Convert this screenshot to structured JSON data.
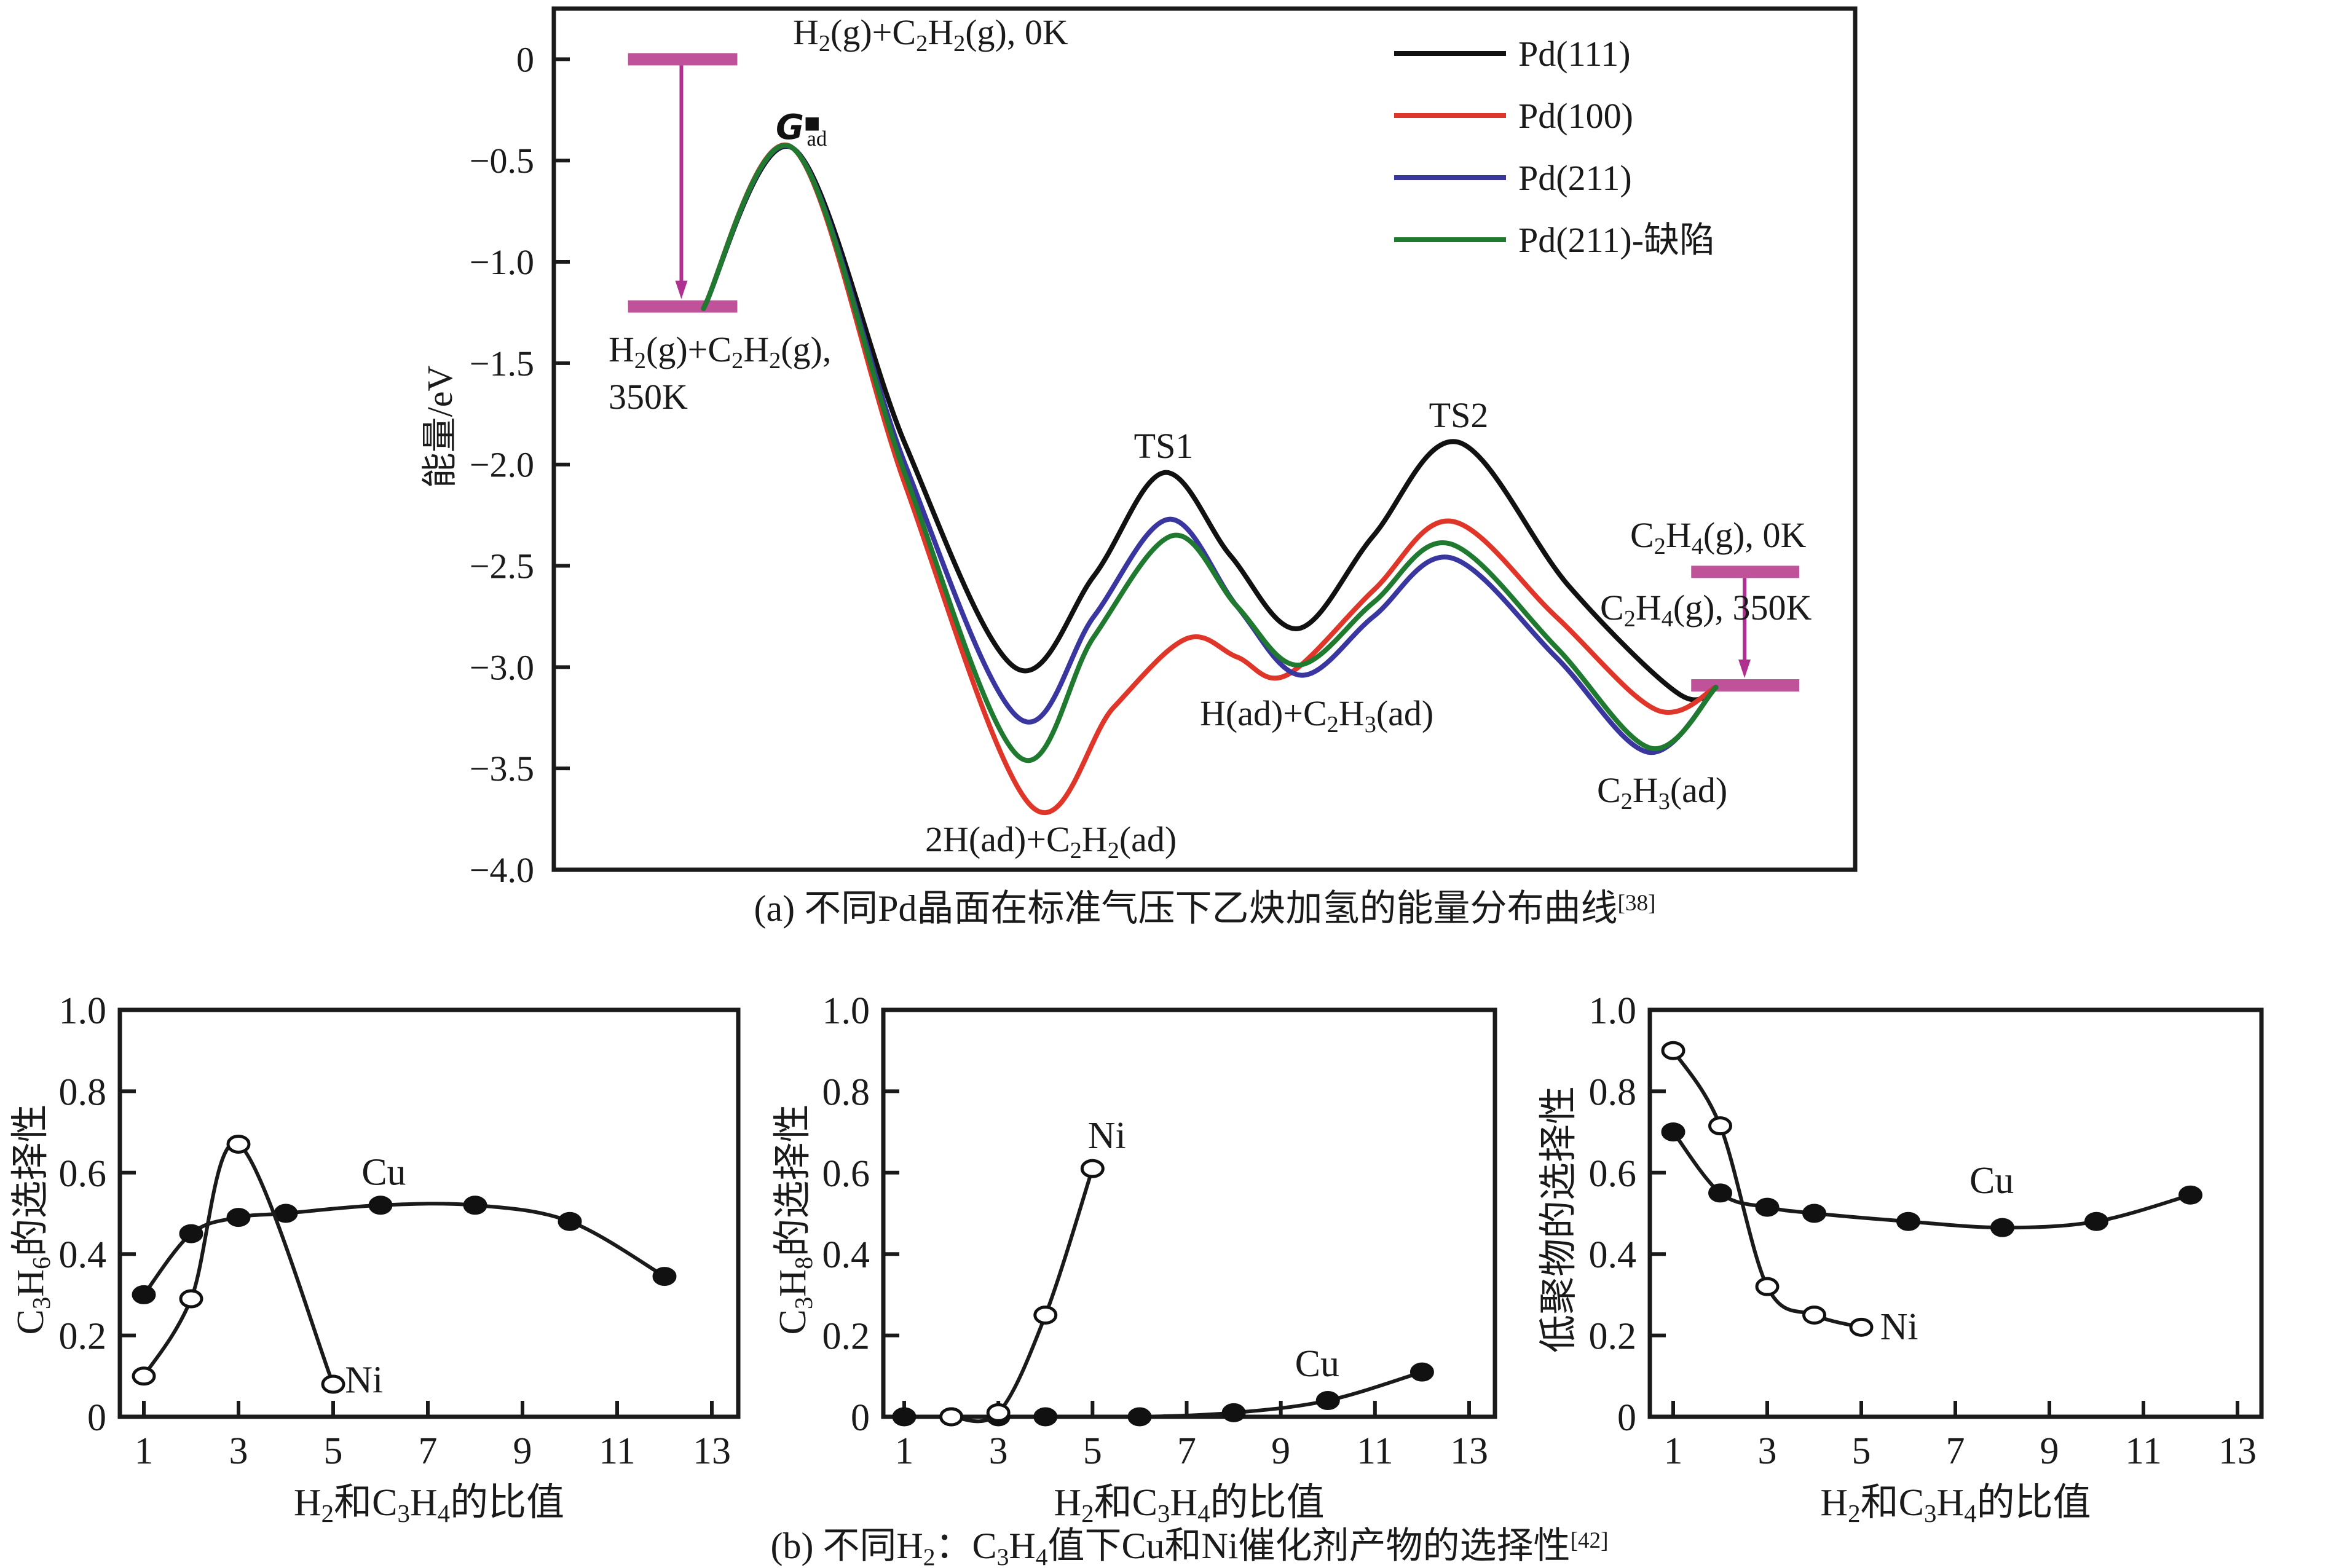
{
  "chart_data": [
    {
      "id": "a",
      "type": "line",
      "title": "",
      "caption": "(a) 不同Pd晶面在标准气压下乙炔加氢的能量分布曲线",
      "caption_ref": "[38]",
      "xlabel": "",
      "ylabel": "能量/eV",
      "xlim": [
        0,
        100
      ],
      "ylim": [
        -4.0,
        0.25
      ],
      "yticks": [
        0,
        -0.5,
        -1.0,
        -1.5,
        -2.0,
        -2.5,
        -3.0,
        -3.5,
        -4.0
      ],
      "ytick_labels": [
        "0",
        "−0.5",
        "−1.0",
        "−1.5",
        "−2.0",
        "−2.5",
        "−3.0",
        "−3.5",
        "−4.0"
      ],
      "grid": false,
      "legend_position": "top-right",
      "series": [
        {
          "name": "Pd(111)",
          "color": "#111111",
          "x": [
            11.5,
            18.4,
            27,
            35.4,
            41.5,
            46.9,
            52,
            57.2,
            63,
            69.5,
            78,
            86.4,
            89.3
          ],
          "y": [
            -1.23,
            -0.44,
            -1.9,
            -3.0,
            -2.55,
            -2.04,
            -2.45,
            -2.81,
            -2.35,
            -1.89,
            -2.6,
            -3.13,
            -3.1
          ]
        },
        {
          "name": "Pd(100)",
          "color": "#e0362a",
          "x": [
            11.5,
            18.4,
            27,
            36.6,
            43,
            48.6,
            52.5,
            56.3,
            63,
            69.0,
            77,
            84.7,
            89.3
          ],
          "y": [
            -1.23,
            -0.44,
            -2.1,
            -3.68,
            -3.2,
            -2.86,
            -2.95,
            -3.04,
            -2.62,
            -2.28,
            -2.75,
            -3.21,
            -3.1
          ]
        },
        {
          "name": "Pd(211)",
          "color": "#3a36a0",
          "x": [
            11.5,
            18.4,
            27,
            35.7,
            41.5,
            47.3,
            52.5,
            57.4,
            63,
            68.9,
            77,
            84.1,
            89.3
          ],
          "y": [
            -1.23,
            -0.44,
            -2.0,
            -3.25,
            -2.75,
            -2.27,
            -2.7,
            -3.04,
            -2.75,
            -2.46,
            -2.95,
            -3.42,
            -3.1
          ]
        },
        {
          "name": "Pd(211)-缺陷",
          "color": "#1f7a30",
          "x": [
            11.5,
            18.4,
            27,
            35.7,
            41.5,
            47.6,
            52.5,
            57.2,
            63,
            68.8,
            77,
            84.3,
            89.3
          ],
          "y": [
            -1.23,
            -0.44,
            -2.05,
            -3.44,
            -2.85,
            -2.35,
            -2.7,
            -2.99,
            -2.68,
            -2.39,
            -2.9,
            -3.4,
            -3.1
          ]
        }
      ],
      "energy_levels": [
        {
          "x_range": [
            5.7,
            14.1
          ],
          "y": 0.0
        },
        {
          "x_range": [
            5.7,
            14.1
          ],
          "y": -1.22
        },
        {
          "x_range": [
            87.4,
            95.7
          ],
          "y": -2.53
        },
        {
          "x_range": [
            87.4,
            95.7
          ],
          "y": -3.09
        }
      ],
      "arrows": [
        {
          "x": 9.8,
          "from": 0.0,
          "to": -1.22
        },
        {
          "x": 91.5,
          "from": -2.53,
          "to": -3.09
        }
      ],
      "annotations": {
        "h2_c2h2_0k": {
          "main": "H",
          "parts": [
            [
              "H",
              "n"
            ],
            [
              "2",
              "s"
            ],
            [
              "(g)+C",
              "n"
            ],
            [
              "2",
              "s"
            ],
            [
              "H",
              "n"
            ],
            [
              "2",
              "s"
            ],
            [
              "(g), 0K",
              "n"
            ]
          ]
        },
        "h2_c2h2_350k_line1": {
          "parts": [
            [
              "H",
              "n"
            ],
            [
              "2",
              "s"
            ],
            [
              "(g)+C",
              "n"
            ],
            [
              "2",
              "s"
            ],
            [
              "H",
              "n"
            ],
            [
              "2",
              "s"
            ],
            [
              "(g),",
              "n"
            ]
          ]
        },
        "h2_c2h2_350k_line2": "350K",
        "gad": {
          "main": "G",
          "sub": "ad",
          "sup": "■"
        },
        "ts1": "TS1",
        "ts2": "TS2",
        "state_2h_c2h2": {
          "parts": [
            [
              "2H(ad)+C",
              "n"
            ],
            [
              "2",
              "s"
            ],
            [
              "H",
              "n"
            ],
            [
              "2",
              "s"
            ],
            [
              "(ad)",
              "n"
            ]
          ]
        },
        "state_h_c2h3": {
          "parts": [
            [
              "H(ad)+C",
              "n"
            ],
            [
              "2",
              "s"
            ],
            [
              "H",
              "n"
            ],
            [
              "3",
              "s"
            ],
            [
              "(ad)",
              "n"
            ]
          ]
        },
        "state_c2h3": {
          "parts": [
            [
              "C",
              "n"
            ],
            [
              "2",
              "s"
            ],
            [
              "H",
              "n"
            ],
            [
              "3",
              "s"
            ],
            [
              "(ad)",
              "n"
            ]
          ]
        },
        "c2h4_0k": {
          "parts": [
            [
              "C",
              "n"
            ],
            [
              "2",
              "s"
            ],
            [
              "H",
              "n"
            ],
            [
              "4",
              "s"
            ],
            [
              "(g), 0K",
              "n"
            ]
          ]
        },
        "c2h4_350k": {
          "parts": [
            [
              "C",
              "n"
            ],
            [
              "2",
              "s"
            ],
            [
              "H",
              "n"
            ],
            [
              "4",
              "s"
            ],
            [
              "(g), 350K",
              "n"
            ]
          ]
        }
      }
    },
    {
      "id": "b1",
      "type": "line",
      "xlabel_parts": [
        [
          "H",
          "n"
        ],
        [
          "2",
          "s"
        ],
        [
          "和C",
          "n"
        ],
        [
          "3",
          "s"
        ],
        [
          "H",
          "n"
        ],
        [
          "4",
          "s"
        ],
        [
          "的比值",
          "n"
        ]
      ],
      "ylabel_parts": [
        [
          "C",
          "n"
        ],
        [
          "3",
          "s"
        ],
        [
          "H",
          "n"
        ],
        [
          "6",
          "s"
        ],
        [
          "的选择性",
          "n"
        ]
      ],
      "xlim": [
        0.5,
        13.7
      ],
      "ylim": [
        0,
        1.0
      ],
      "xticks": [
        1,
        3,
        5,
        7,
        9,
        11,
        13
      ],
      "yticks": [
        0,
        0.2,
        0.4,
        0.6,
        0.8,
        1.0
      ],
      "ytick_labels": [
        "0",
        "0.2",
        "0.4",
        "0.6",
        "0.8",
        "1.0"
      ],
      "grid": false,
      "series": [
        {
          "name": "Cu",
          "marker": "filled",
          "label_at": [
            5.6,
            0.57
          ],
          "x": [
            1,
            2,
            3,
            4,
            6,
            8,
            10,
            12
          ],
          "y": [
            0.3,
            0.45,
            0.49,
            0.5,
            0.52,
            0.52,
            0.48,
            0.345
          ]
        },
        {
          "name": "Ni",
          "marker": "open",
          "label_at": [
            5.25,
            0.06
          ],
          "x": [
            1,
            2,
            3,
            5
          ],
          "y": [
            0.1,
            0.29,
            0.67,
            0.08
          ]
        }
      ]
    },
    {
      "id": "b2",
      "type": "line",
      "xlabel_parts": [
        [
          "H",
          "n"
        ],
        [
          "2",
          "s"
        ],
        [
          "和C",
          "n"
        ],
        [
          "3",
          "s"
        ],
        [
          "H",
          "n"
        ],
        [
          "4",
          "s"
        ],
        [
          "的比值",
          "n"
        ]
      ],
      "ylabel_parts": [
        [
          "C",
          "n"
        ],
        [
          "3",
          "s"
        ],
        [
          "H",
          "n"
        ],
        [
          "8",
          "s"
        ],
        [
          "的选择性",
          "n"
        ]
      ],
      "xlim": [
        0.5,
        13.7
      ],
      "ylim": [
        0,
        1.0
      ],
      "xticks": [
        1,
        3,
        5,
        7,
        9,
        11,
        13
      ],
      "yticks": [
        0,
        0.2,
        0.4,
        0.6,
        0.8,
        1.0
      ],
      "ytick_labels": [
        "0",
        "0.2",
        "0.4",
        "0.6",
        "0.8",
        "1.0"
      ],
      "grid": false,
      "series": [
        {
          "name": "Cu",
          "marker": "filled",
          "label_at": [
            9.3,
            0.1
          ],
          "x": [
            1,
            2,
            3,
            4,
            6,
            8,
            10,
            12
          ],
          "y": [
            0,
            0,
            0,
            0,
            0,
            0.01,
            0.04,
            0.11
          ]
        },
        {
          "name": "Ni",
          "marker": "open",
          "label_at": [
            4.9,
            0.66
          ],
          "x": [
            2,
            3,
            4,
            5
          ],
          "y": [
            0,
            0.01,
            0.25,
            0.61
          ]
        }
      ]
    },
    {
      "id": "b3",
      "type": "line",
      "xlabel_parts": [
        [
          "H",
          "n"
        ],
        [
          "2",
          "s"
        ],
        [
          "和C",
          "n"
        ],
        [
          "3",
          "s"
        ],
        [
          "H",
          "n"
        ],
        [
          "4",
          "s"
        ],
        [
          "的比值",
          "n"
        ]
      ],
      "ylabel_parts": [
        [
          "低聚物的选择性",
          "n"
        ]
      ],
      "xlim": [
        0.5,
        13.7
      ],
      "ylim": [
        0,
        1.0
      ],
      "xticks": [
        1,
        3,
        5,
        7,
        9,
        11,
        13
      ],
      "yticks": [
        0,
        0.2,
        0.4,
        0.6,
        0.8,
        1.0
      ],
      "ytick_labels": [
        "0",
        "0.2",
        "0.4",
        "0.6",
        "0.8",
        "1.0"
      ],
      "grid": false,
      "series": [
        {
          "name": "Cu",
          "marker": "filled",
          "label_at": [
            7.3,
            0.55
          ],
          "x": [
            1,
            2,
            3,
            4,
            6,
            8,
            10,
            12
          ],
          "y": [
            0.7,
            0.55,
            0.515,
            0.5,
            0.48,
            0.465,
            0.48,
            0.545
          ]
        },
        {
          "name": "Ni",
          "marker": "open",
          "label_at": [
            5.4,
            0.19
          ],
          "x": [
            1,
            2,
            3,
            4,
            5
          ],
          "y": [
            0.9,
            0.715,
            0.32,
            0.25,
            0.22
          ]
        }
      ]
    }
  ],
  "caption_b": {
    "parts": [
      [
        "(b) 不同H",
        "n"
      ],
      [
        "2",
        "s"
      ],
      [
        "：C",
        "n"
      ],
      [
        "3",
        "s"
      ],
      [
        "H",
        "n"
      ],
      [
        "4",
        "s"
      ],
      [
        "值下Cu和Ni催化剂产物的选择性",
        "n"
      ],
      [
        "[42]",
        "p"
      ]
    ]
  }
}
